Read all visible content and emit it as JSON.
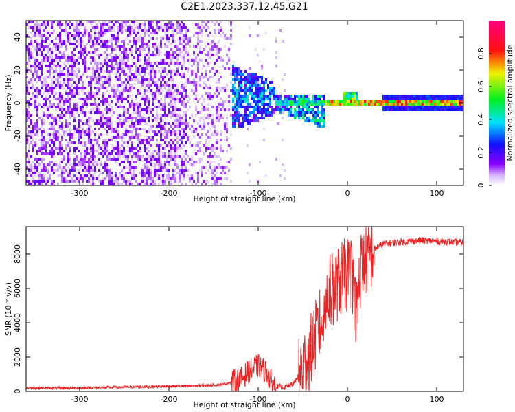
{
  "title": "C2E1.2023.337.12.45.G21",
  "chart_data": [
    {
      "type": "heatmap",
      "xlabel": "Height of straight line (km)",
      "ylabel": "Frequency (Hz)",
      "xlim": [
        -360,
        130
      ],
      "ylim": [
        -50,
        50
      ],
      "xticks": [
        -300,
        -200,
        -100,
        0,
        100
      ],
      "yticks": [
        -40,
        -20,
        0,
        20,
        40
      ],
      "colorbar": {
        "label": "Normalized spectral amplitude",
        "range": [
          0,
          1
        ],
        "ticks": [
          0,
          0.2,
          0.4,
          0.6,
          0.8
        ],
        "colormap": "rainbow (white-violet-blue-cyan-green-yellow-red-magenta)"
      },
      "description_points": {
        "noise_region_x": [
          -360,
          -130
        ],
        "converging_region_x": [
          -130,
          -25
        ],
        "carrier_line_x": [
          -25,
          130
        ],
        "carrier_frequency_hz": 0
      }
    },
    {
      "type": "line",
      "xlabel": "Height of straight line (km)",
      "ylabel": "SNR (10 * v/v)",
      "xlim": [
        -360,
        130
      ],
      "ylim": [
        0,
        9600
      ],
      "xticks": [
        -300,
        -200,
        -100,
        0,
        100
      ],
      "yticks": [
        0,
        2000,
        4000,
        6000,
        8000
      ],
      "line_color": "#ee2222",
      "series": [
        {
          "x": [
            -360,
            -300,
            -250,
            -200,
            -170,
            -140,
            -120,
            -110,
            -100,
            -90,
            -85,
            -80,
            -70,
            -60,
            -50,
            -40,
            -30,
            -25,
            -20,
            -15,
            -10,
            -5,
            0,
            5,
            10,
            15,
            20,
            30,
            40,
            60,
            80,
            100,
            120,
            130
          ],
          "values": [
            200,
            200,
            250,
            300,
            330,
            400,
            700,
            1200,
            1500,
            1100,
            500,
            300,
            250,
            450,
            1400,
            2500,
            4000,
            5000,
            5800,
            6000,
            6300,
            6700,
            6800,
            7000,
            4500,
            7200,
            7600,
            8300,
            8600,
            8700,
            8800,
            8750,
            8700,
            8700
          ]
        }
      ]
    }
  ]
}
